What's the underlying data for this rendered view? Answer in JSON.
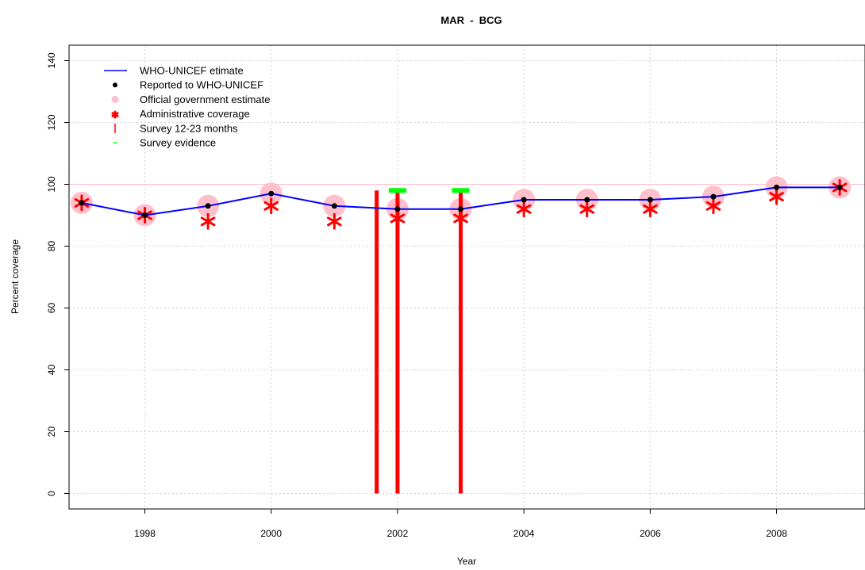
{
  "chart_data": {
    "type": "line",
    "title": "MAR  -  BCG",
    "xlabel": "Year",
    "ylabel": "Percent coverage",
    "xlim": [
      1996.8,
      2009.4
    ],
    "ylim": [
      -5,
      145
    ],
    "x_ticks": [
      "1998",
      "2000",
      "2002",
      "2004",
      "2006",
      "2008"
    ],
    "y_ticks": [
      "0",
      "20",
      "40",
      "60",
      "80",
      "100",
      "120",
      "140"
    ],
    "grid": true,
    "legend_position": "top-left",
    "reference_line": 100,
    "legend": [
      "WHO-UNICEF etimate",
      "Reported to WHO-UNICEF",
      "Official government estimate",
      "Administrative coverage",
      "Survey 12-23 months",
      "Survey evidence"
    ],
    "years": [
      1997,
      1998,
      1999,
      2000,
      2001,
      2002,
      2003,
      2004,
      2005,
      2006,
      2007,
      2008,
      2009
    ],
    "series": [
      {
        "name": "WHO-UNICEF etimate",
        "kind": "line",
        "color": "#0000ff",
        "values": [
          94,
          90,
          93,
          97,
          93,
          92,
          92,
          95,
          95,
          95,
          96,
          99,
          99
        ]
      },
      {
        "name": "Reported to WHO-UNICEF",
        "kind": "dot",
        "color": "#000000",
        "values": [
          94,
          90,
          93,
          97,
          93,
          92,
          92,
          95,
          95,
          95,
          96,
          99,
          99
        ]
      },
      {
        "name": "Official government estimate",
        "kind": "circle",
        "color": "#ffc0cb",
        "values": [
          94,
          90,
          93,
          97,
          93,
          92,
          92,
          95,
          95,
          95,
          96,
          99,
          99
        ]
      },
      {
        "name": "Administrative coverage",
        "kind": "star",
        "color": "#ff0000",
        "values": [
          94,
          90,
          88,
          93,
          88,
          89,
          89,
          92,
          92,
          92,
          93,
          96,
          99
        ]
      }
    ],
    "surveys": [
      {
        "x": 2001.67,
        "value": 98
      },
      {
        "x": 2002.0,
        "value": 98
      },
      {
        "x": 2003.0,
        "value": 98
      }
    ],
    "survey_evidence": [
      {
        "x": 2002.0,
        "value": 98
      },
      {
        "x": 2003.0,
        "value": 98
      }
    ],
    "colors": {
      "estimate": "#0000ff",
      "reported": "#000000",
      "official": "#ffc0cb",
      "admin": "#ff0000",
      "survey": "#ff0000",
      "evidence": "#00ff00",
      "reference": "#ffc0cb",
      "grid": "#d3d3d3"
    }
  }
}
